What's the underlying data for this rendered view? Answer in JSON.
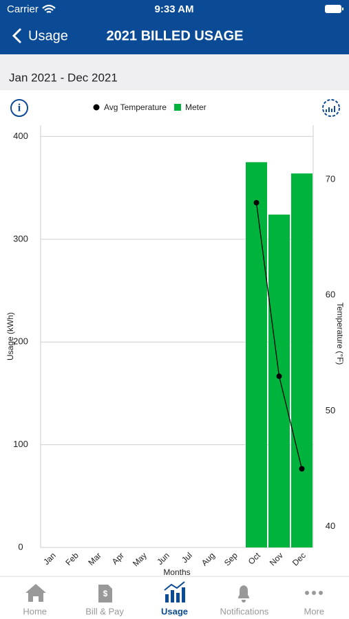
{
  "status_bar": {
    "carrier": "Carrier",
    "time": "9:33 AM"
  },
  "header": {
    "back": "Usage",
    "title": "2021 BILLED USAGE"
  },
  "date_range": "Jan 2021 - Dec 2021",
  "chart_data": {
    "type": "combo",
    "categories": [
      "Jan",
      "Feb",
      "Mar",
      "Apr",
      "May",
      "Jun",
      "Jul",
      "Aug",
      "Sep",
      "Oct",
      "Nov",
      "Dec"
    ],
    "series": [
      {
        "name": "Avg Temperature",
        "type": "line",
        "color": "#000000",
        "axis": "y2",
        "values": [
          null,
          null,
          null,
          null,
          null,
          null,
          null,
          null,
          null,
          68,
          53,
          45
        ]
      },
      {
        "name": "Meter",
        "type": "bar",
        "color": "#00b33c",
        "values": [
          null,
          null,
          null,
          null,
          null,
          null,
          null,
          null,
          null,
          375,
          324,
          364
        ]
      }
    ],
    "x_label": "Months",
    "y_label": "Usage (kWh)",
    "y2_label": "Temperature (°F)",
    "ylim": [
      0,
      411
    ],
    "yticks": [
      0,
      100,
      200,
      300,
      400
    ],
    "y2lim": [
      38.2,
      74.7
    ],
    "y2ticks": [
      40,
      50,
      60,
      70
    ],
    "grid": true,
    "legend": "top"
  },
  "tabs": [
    "Home",
    "Bill & Pay",
    "Usage",
    "Notifications",
    "More"
  ],
  "active_tab": 2
}
